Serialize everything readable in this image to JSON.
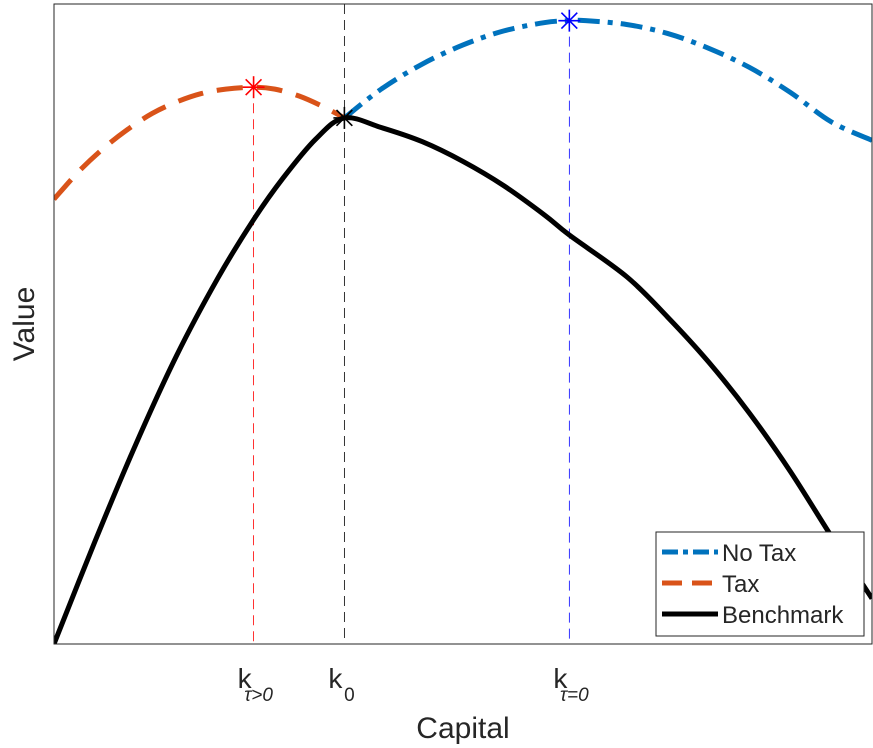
{
  "chart_data": {
    "type": "line",
    "xlabel": "Capital",
    "ylabel": "Value",
    "xlim": [
      0,
      1
    ],
    "ylim": [
      0,
      1
    ],
    "x_ticks": [
      {
        "x": 0.244,
        "base": "k",
        "sub": "τ>0"
      },
      {
        "x": 0.355,
        "base": "k",
        "sub": "0"
      },
      {
        "x": 0.63,
        "base": "k",
        "sub": "τ=0"
      }
    ],
    "series": [
      {
        "name": "No Tax",
        "color": "#0072BD",
        "style": "dash-dot",
        "x": [
          0.355,
          0.4,
          0.45,
          0.5,
          0.55,
          0.6,
          0.63,
          0.65,
          0.7,
          0.75,
          0.8,
          0.85,
          0.9,
          0.95,
          1.0
        ],
        "y": [
          0.822,
          0.867,
          0.906,
          0.936,
          0.958,
          0.971,
          0.974,
          0.974,
          0.968,
          0.954,
          0.931,
          0.901,
          0.862,
          0.816,
          0.787
        ]
      },
      {
        "name": "Tax",
        "color": "#D95319",
        "style": "dashed",
        "x": [
          0.0,
          0.03,
          0.06,
          0.09,
          0.12,
          0.15,
          0.18,
          0.21,
          0.244,
          0.27,
          0.3,
          0.33,
          0.355
        ],
        "y": [
          0.695,
          0.738,
          0.774,
          0.804,
          0.829,
          0.847,
          0.86,
          0.867,
          0.87,
          0.867,
          0.856,
          0.839,
          0.822
        ]
      },
      {
        "name": "Benchmark",
        "color": "#000000",
        "style": "solid",
        "x": [
          0.0,
          0.05,
          0.1,
          0.15,
          0.2,
          0.244,
          0.28,
          0.32,
          0.355,
          0.4,
          0.45,
          0.5,
          0.55,
          0.6,
          0.63,
          0.7,
          0.75,
          0.8,
          0.85,
          0.9,
          0.95,
          1.0
        ],
        "y": [
          0.0,
          0.16,
          0.312,
          0.451,
          0.571,
          0.663,
          0.728,
          0.789,
          0.822,
          0.807,
          0.785,
          0.754,
          0.716,
          0.67,
          0.639,
          0.574,
          0.511,
          0.441,
          0.361,
          0.27,
          0.169,
          0.071
        ]
      }
    ],
    "markers": [
      {
        "x": 0.244,
        "y": 0.87,
        "color": "#FF0000"
      },
      {
        "x": 0.355,
        "y": 0.822,
        "color": "#000000"
      },
      {
        "x": 0.63,
        "y": 0.974,
        "color": "#0000FF"
      }
    ],
    "vlines": [
      {
        "x": 0.244,
        "top": 0.87,
        "color": "#FF0000"
      },
      {
        "x": 0.355,
        "top": 1.0,
        "color": "#000000"
      },
      {
        "x": 0.63,
        "top": 0.974,
        "color": "#0000FF"
      }
    ],
    "legend": {
      "position": "bottom-right",
      "entries": [
        "No Tax",
        "Tax",
        "Benchmark"
      ]
    },
    "grid": false
  }
}
